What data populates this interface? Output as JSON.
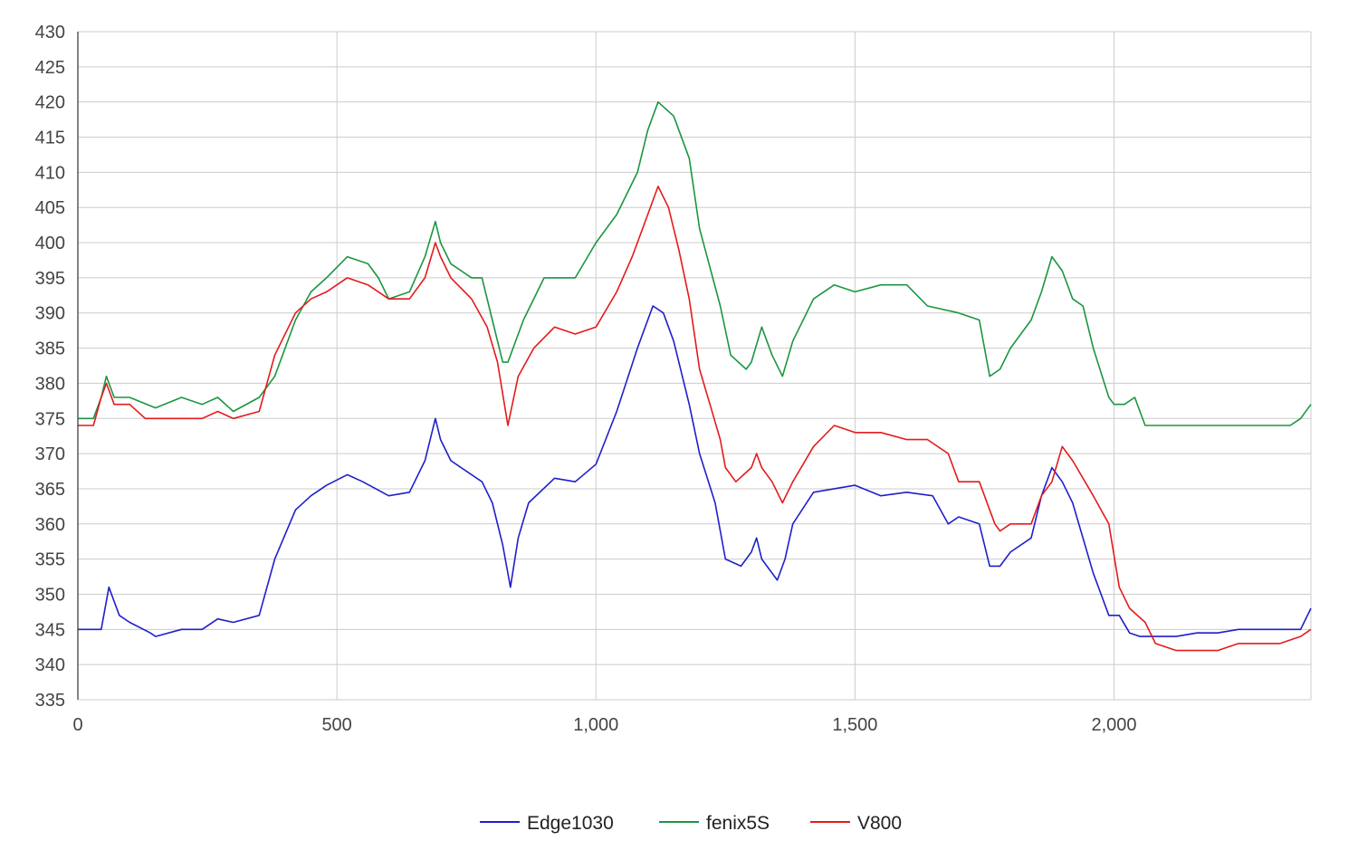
{
  "chart_data": {
    "type": "line",
    "title": "",
    "xlabel": "",
    "ylabel": "",
    "xlim": [
      0,
      2380
    ],
    "ylim": [
      335,
      430
    ],
    "x_ticks": [
      0,
      500,
      1000,
      1500,
      2000
    ],
    "x_tick_labels": [
      "0",
      "500",
      "1,000",
      "1,500",
      "2,000"
    ],
    "y_ticks": [
      335,
      340,
      345,
      350,
      355,
      360,
      365,
      370,
      375,
      380,
      385,
      390,
      395,
      400,
      405,
      410,
      415,
      420,
      425,
      430
    ],
    "y_tick_labels": [
      "335",
      "340",
      "345",
      "350",
      "355",
      "360",
      "365",
      "370",
      "375",
      "380",
      "385",
      "390",
      "395",
      "400",
      "405",
      "410",
      "415",
      "420",
      "425",
      "430"
    ],
    "grid": true,
    "legend_position": "bottom",
    "series": [
      {
        "name": "Edge1030",
        "color": "#1f1fcc",
        "x": [
          0,
          30,
          45,
          60,
          80,
          100,
          140,
          150,
          200,
          240,
          270,
          300,
          350,
          380,
          420,
          450,
          480,
          520,
          550,
          600,
          640,
          670,
          690,
          700,
          720,
          780,
          800,
          820,
          835,
          850,
          870,
          920,
          960,
          1000,
          1040,
          1080,
          1110,
          1130,
          1150,
          1180,
          1200,
          1230,
          1250,
          1280,
          1300,
          1310,
          1320,
          1330,
          1350,
          1365,
          1380,
          1420,
          1460,
          1500,
          1550,
          1600,
          1650,
          1680,
          1700,
          1740,
          1760,
          1780,
          1800,
          1840,
          1860,
          1880,
          1900,
          1920,
          1960,
          1990,
          2010,
          2030,
          2050,
          2070,
          2080,
          2120,
          2160,
          2200,
          2240,
          2280,
          2320,
          2360,
          2380
        ],
        "y": [
          345,
          345,
          345,
          351,
          347,
          346,
          344.5,
          344,
          345,
          345,
          346.5,
          346,
          347,
          355,
          362,
          364,
          365.5,
          367,
          366,
          364,
          364.5,
          369,
          375,
          372,
          369,
          366,
          363,
          357,
          351,
          358,
          363,
          366.5,
          366,
          368.5,
          376,
          385,
          391,
          390,
          386,
          377,
          370,
          363,
          355,
          354,
          356,
          358,
          355,
          354,
          352,
          355,
          360,
          364.5,
          365,
          365.5,
          364,
          364.5,
          364,
          360,
          361,
          360,
          354,
          354,
          356,
          358,
          364,
          368,
          366,
          363,
          353,
          347,
          347,
          344.5,
          344,
          344,
          344,
          344,
          344.5,
          344.5,
          345,
          345,
          345,
          345,
          348
        ]
      },
      {
        "name": "fenix5S",
        "color": "#1a9641",
        "x": [
          0,
          30,
          45,
          55,
          70,
          100,
          150,
          200,
          240,
          270,
          300,
          350,
          380,
          420,
          450,
          480,
          520,
          560,
          580,
          600,
          640,
          670,
          690,
          700,
          720,
          760,
          780,
          800,
          820,
          830,
          860,
          900,
          940,
          960,
          1000,
          1040,
          1080,
          1100,
          1120,
          1150,
          1180,
          1200,
          1240,
          1260,
          1290,
          1300,
          1320,
          1340,
          1360,
          1380,
          1420,
          1460,
          1500,
          1550,
          1600,
          1640,
          1700,
          1740,
          1760,
          1780,
          1800,
          1840,
          1860,
          1880,
          1900,
          1920,
          1940,
          1960,
          1990,
          2000,
          2020,
          2040,
          2060,
          2070,
          2100,
          2140,
          2180,
          2220,
          2260,
          2300,
          2340,
          2360,
          2380
        ],
        "y": [
          375,
          375,
          378,
          381,
          378,
          378,
          376.5,
          378,
          377,
          378,
          376,
          378,
          381,
          389,
          393,
          395,
          398,
          397,
          395,
          392,
          393,
          398,
          403,
          400,
          397,
          395,
          395,
          389,
          383,
          383,
          389,
          395,
          395,
          395,
          400,
          404,
          410,
          416,
          420,
          418,
          412,
          402,
          391,
          384,
          382,
          383,
          388,
          384,
          381,
          386,
          392,
          394,
          393,
          394,
          394,
          391,
          390,
          389,
          381,
          382,
          385,
          389,
          393,
          398,
          396,
          392,
          391,
          385,
          378,
          377,
          377,
          378,
          374,
          374,
          374,
          374,
          374,
          374,
          374,
          374,
          374,
          375,
          377
        ]
      },
      {
        "name": "V800",
        "color": "#e41a1c",
        "x": [
          0,
          30,
          45,
          55,
          70,
          100,
          130,
          150,
          200,
          240,
          270,
          300,
          350,
          380,
          420,
          450,
          480,
          520,
          560,
          580,
          600,
          640,
          670,
          690,
          700,
          720,
          760,
          790,
          810,
          830,
          850,
          880,
          920,
          960,
          1000,
          1040,
          1070,
          1100,
          1120,
          1140,
          1160,
          1180,
          1200,
          1220,
          1240,
          1250,
          1270,
          1300,
          1310,
          1320,
          1340,
          1360,
          1380,
          1420,
          1460,
          1500,
          1550,
          1600,
          1640,
          1680,
          1700,
          1740,
          1770,
          1780,
          1800,
          1840,
          1860,
          1880,
          1900,
          1920,
          1960,
          1990,
          2010,
          2030,
          2060,
          2080,
          2120,
          2160,
          2200,
          2240,
          2280,
          2320,
          2360,
          2380
        ],
        "y": [
          374,
          374,
          378,
          380,
          377,
          377,
          375,
          375,
          375,
          375,
          376,
          375,
          376,
          384,
          390,
          392,
          393,
          395,
          394,
          393,
          392,
          392,
          395,
          400,
          398,
          395,
          392,
          388,
          383,
          374,
          381,
          385,
          388,
          387,
          388,
          393,
          398,
          404,
          408,
          405,
          399,
          392,
          382,
          377,
          372,
          368,
          366,
          368,
          370,
          368,
          366,
          363,
          366,
          371,
          374,
          373,
          373,
          372,
          372,
          370,
          366,
          366,
          360,
          359,
          360,
          360,
          364,
          366,
          371,
          369,
          364,
          360,
          351,
          348,
          346,
          343,
          342,
          342,
          342,
          343,
          343,
          343,
          344,
          345
        ]
      }
    ]
  }
}
